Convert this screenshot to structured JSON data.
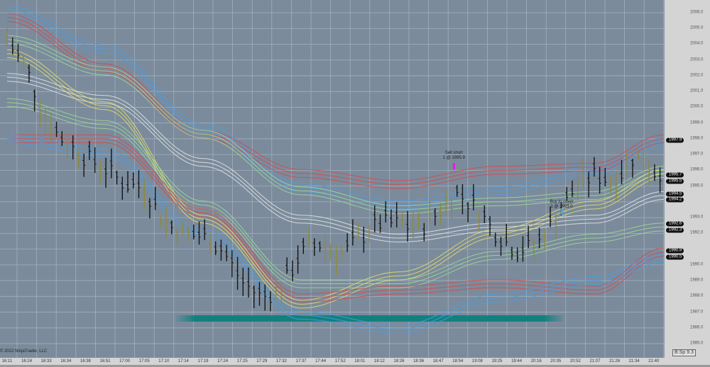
{
  "copyright": "© 2022 NinjaTrader, LLC",
  "status_box": "B:Sp 9.3",
  "annotations": [
    {
      "line1": "Sell short",
      "line2": "1 @ 1995.9",
      "index": 22.8,
      "price": 1996.5,
      "marker_color": "#ff00ff"
    },
    {
      "line1": "Buy to cover",
      "line2": "1 @ 1993.0",
      "index": 28.3,
      "price": 1993.4,
      "marker_color": "#3fa9f5"
    }
  ],
  "chart_data": {
    "type": "ohlc-bar",
    "ylim": [
      1984.7,
      2006.8
    ],
    "y_ticks": [
      "2006.0",
      "2005.0",
      "2004.0",
      "2003.0",
      "2002.0",
      "2001.0",
      "2000.0",
      "1999.0",
      "1998.0",
      "1997.0",
      "1996.0",
      "1995.0",
      "1993.0",
      "1992.0",
      "1990.0",
      "1989.0",
      "1988.0",
      "1987.0",
      "1986.0",
      "1985.0"
    ],
    "y_tick_values": [
      2006,
      2005,
      2004,
      2003,
      2002,
      2001,
      2000,
      1999,
      1998,
      1997,
      1996,
      1995,
      1993,
      1992,
      1990,
      1989,
      1988,
      1987,
      1986,
      1985
    ],
    "x_ticks": [
      "16:11",
      "16:24",
      "16:33",
      "16:34",
      "16:38",
      "16:51",
      "17:00",
      "17:05",
      "17:10",
      "17:14",
      "17:19",
      "17:24",
      "17:25",
      "17:29",
      "17:32",
      "17:37",
      "17:44",
      "17:52",
      "18:01",
      "18:12",
      "18:26",
      "18:36",
      "18:47",
      "18:54",
      "19:08",
      "19:25",
      "19:44",
      "20:16",
      "20:35",
      "20:52",
      "21:07",
      "21:26",
      "21:34",
      "21:40"
    ],
    "closes_at_ticks": [
      2004.3,
      2002.5,
      1999.2,
      1997.8,
      1996.9,
      1996.2,
      1995.2,
      1995.0,
      1992.8,
      1992.0,
      1991.9,
      1991.0,
      1989.0,
      1988.0,
      1988.6,
      1990.8,
      1991.4,
      1990.6,
      1991.8,
      1992.7,
      1992.7,
      1992.3,
      1993.4,
      1994.6,
      1993.6,
      1992.0,
      1991.0,
      1991.3,
      1993.0,
      1995.0,
      1995.8,
      1995.3,
      1997.0,
      1996.0
    ],
    "price_flags": [
      "1997.9",
      "1995.7",
      "1995.5",
      "1994.5",
      "1994.2",
      "1992.6",
      "1992.3",
      "1990.9",
      "1990.5"
    ],
    "price_flag_values": [
      1997.9,
      1995.7,
      1995.5,
      1994.5,
      1994.2,
      1992.6,
      1992.3,
      1990.9,
      1990.5
    ],
    "band_knot_ticks": [
      0,
      5,
      10,
      15,
      20,
      25,
      30,
      33.5
    ],
    "bands": [
      {
        "color": "#4a9ee8",
        "values": [
          2006.2,
          2003.7,
          1998.7,
          1994.9,
          1993.8,
          1994.7,
          1996.0,
          1997.8
        ]
      },
      {
        "color": "#d9464a",
        "values": [
          2005.7,
          2002.5,
          1998.3,
          1995.8,
          1995.1,
          1996.0,
          1996.2,
          1998.0
        ]
      },
      {
        "color": "#9fdc9a",
        "values": [
          2004.3,
          2002.3,
          1998.3,
          1994.7,
          1993.5,
          1994.0,
          1994.4,
          1996.0
        ]
      },
      {
        "color": "#e8e8e8",
        "values": [
          2001.9,
          2000.5,
          1996.5,
          1992.9,
          1991.7,
          1992.4,
          1992.9,
          1994.4
        ]
      },
      {
        "color": "#e6e06a",
        "values": [
          2003.4,
          2000.1,
          1992.9,
          1987.5,
          1989.3,
          1992.0,
          1993.8,
          1995.8
        ]
      },
      {
        "color": "#9fdc9a",
        "values": [
          2000.3,
          1998.9,
          1993.8,
          1988.8,
          1988.8,
          1990.6,
          1991.7,
          1992.4
        ]
      },
      {
        "color": "#d9464a",
        "values": [
          1998.0,
          1998.0,
          1993.3,
          1987.9,
          1988.4,
          1988.8,
          1988.4,
          1990.8
        ]
      },
      {
        "color": "#4a9ee8",
        "values": [
          1998.0,
          1997.1,
          1992.0,
          1986.8,
          1985.9,
          1987.9,
          1989.0,
          1990.4
        ]
      }
    ],
    "zone": {
      "price": 1986.6,
      "from_tick": 8.6,
      "to_tick": 28.4,
      "color": "#13807e"
    },
    "grid": true
  }
}
